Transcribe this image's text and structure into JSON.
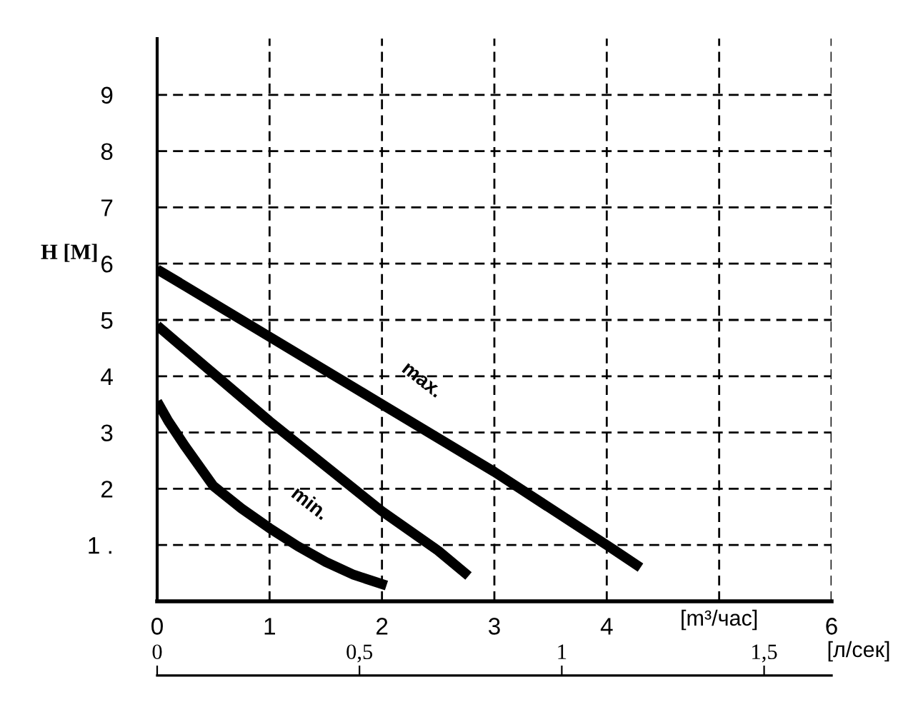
{
  "chart_data": {
    "type": "line",
    "ylabel": "H [M]",
    "xlabel": "[m³/час]",
    "x2label": "[л/сек]",
    "series": [
      {
        "color": "#000000",
        "x": [
          0,
          1,
          2,
          3,
          4,
          4.3
        ],
        "values": [
          5.9,
          4.7,
          3.5,
          2.3,
          1.0,
          0.6
        ]
      },
      {
        "color": "#000000",
        "x": [
          0,
          0.5,
          1,
          1.5,
          2,
          2.5,
          2.77
        ],
        "values": [
          4.9,
          4.05,
          3.2,
          2.4,
          1.6,
          0.9,
          0.45
        ]
      },
      {
        "color": "#000000",
        "x": [
          0,
          0.1,
          0.25,
          0.5,
          0.75,
          1,
          1.25,
          1.5,
          1.75,
          2.04
        ],
        "values": [
          3.55,
          3.2,
          2.75,
          2.05,
          1.65,
          1.3,
          0.98,
          0.7,
          0.47,
          0.28
        ]
      }
    ],
    "xlim": [
      0,
      6
    ],
    "xticks": [
      0,
      1,
      2,
      3,
      4,
      {
        "value": 5,
        "label": null
      },
      6
    ],
    "ylim": [
      0,
      10
    ],
    "yticks": [
      {
        "value": 1,
        "label": "1 ."
      },
      2,
      3,
      4,
      5,
      6,
      7,
      8,
      9
    ],
    "x2lim": [
      0,
      1.6667
    ],
    "x2ticks": [
      0,
      {
        "value": 0.5,
        "label": "0,5"
      },
      1,
      {
        "value": 1.5,
        "label": "1,5"
      }
    ],
    "grid": true,
    "line_style": "solid",
    "marker": "none",
    "annotations": [
      {
        "text": "max.",
        "x": 2,
        "y": 3.5
      },
      {
        "text": "min.",
        "x": 1,
        "y": 1.3
      }
    ]
  }
}
